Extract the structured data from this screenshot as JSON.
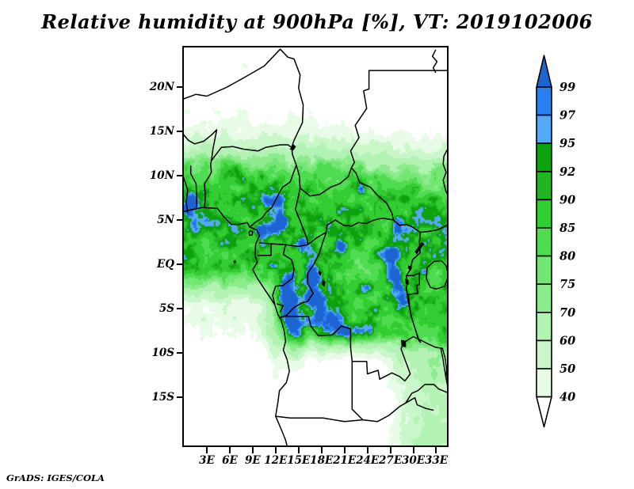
{
  "title": "Relative humidity at 900hPa [%], VT: 2019102006",
  "attribution": "GrADS: IGES/COLA",
  "chart_data": {
    "type": "heatmap",
    "subtype": "filled-contour-map",
    "title": "Relative humidity at 900hPa [%], VT: 2019102006",
    "variable": "Relative humidity",
    "pressure_level": "900hPa",
    "units": "%",
    "valid_time": "2019102006",
    "region": "Central Africa",
    "grid": false,
    "legend_position": "right",
    "x_axis": {
      "tick_labels": [
        "3E",
        "6E",
        "9E",
        "12E",
        "15E",
        "18E",
        "21E",
        "24E",
        "27E",
        "30E",
        "33E"
      ],
      "tick_values": [
        3,
        6,
        9,
        12,
        15,
        18,
        21,
        24,
        27,
        30,
        33
      ],
      "range_deg": [
        0,
        34.4
      ]
    },
    "y_axis": {
      "tick_labels": [
        "20N",
        "15N",
        "10N",
        "5N",
        "EQ",
        "5S",
        "10S",
        "15S"
      ],
      "tick_values": [
        20,
        15,
        10,
        5,
        0,
        -5,
        -10,
        -15
      ],
      "range_deg": [
        -20.5,
        24.5
      ]
    },
    "colorbar": {
      "labels_top_to_bottom": [
        "99",
        "97",
        "95",
        "92",
        "90",
        "85",
        "80",
        "75",
        "70",
        "60",
        "50",
        "40"
      ],
      "levels_ascending": [
        40,
        50,
        60,
        70,
        75,
        80,
        85,
        90,
        92,
        95,
        97,
        99
      ],
      "colors_low_to_high": [
        "#ffffff",
        "#e7fbe7",
        "#c9f7c9",
        "#b2f2b2",
        "#8ceb8c",
        "#73e673",
        "#50dc50",
        "#32cd32",
        "#22b422",
        "#0da20d",
        "#55a8f5",
        "#2a7ff0",
        "#1c64d2"
      ],
      "border_color": "#000000"
    }
  }
}
